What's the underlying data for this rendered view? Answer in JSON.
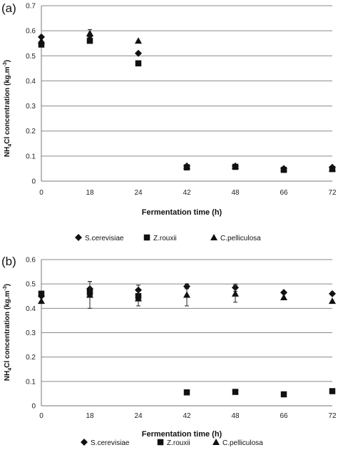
{
  "chart_data": [
    {
      "type": "scatter",
      "panel": "(a)",
      "title": "",
      "xlabel": "Fermentation time (h)",
      "ylabel_main": "NH",
      "ylabel_sub": "4",
      "ylabel_rest": "Cl concentration  (kg.m",
      "ylabel_sup": "-3",
      "ylabel_end": ")",
      "ylim": [
        0,
        0.7
      ],
      "yticks": [
        "0",
        "0.1",
        "0.2",
        "0.3",
        "0.4",
        "0.5",
        "0.6",
        "0.7"
      ],
      "categories": [
        "0",
        "18",
        "24",
        "42",
        "48",
        "66",
        "72"
      ],
      "grid": true,
      "legend": "bottom",
      "series": [
        {
          "name": "S.cerevisiae",
          "marker": "diamond",
          "values": [
            0.575,
            0.58,
            0.51,
            0.06,
            0.06,
            0.05,
            0.055
          ],
          "err": [
            0,
            0,
            0,
            0,
            0,
            0,
            0
          ]
        },
        {
          "name": "Z.rouxii",
          "marker": "square",
          "values": [
            0.545,
            0.56,
            0.47,
            0.055,
            0.057,
            0.045,
            0.048
          ],
          "err": [
            0,
            0,
            0,
            0,
            0,
            0,
            0
          ]
        },
        {
          "name": "C.pelliculosa",
          "marker": "triangle",
          "values": [
            0.56,
            0.59,
            0.56,
            0.06,
            0.06,
            0.05,
            0.05
          ],
          "err": [
            0,
            0.015,
            0,
            0,
            0,
            0,
            0
          ]
        }
      ]
    },
    {
      "type": "scatter",
      "panel": "(b)",
      "title": "",
      "xlabel": "Fermentation time (h)",
      "ylabel_main": "NH",
      "ylabel_sub": "4",
      "ylabel_rest": "Cl concentration  (kg.m",
      "ylabel_sup": "-3",
      "ylabel_end": ")",
      "ylim": [
        0,
        0.6
      ],
      "yticks": [
        "0",
        "0.1",
        "0.2",
        "0.3",
        "0.4",
        "0.5",
        "0.6"
      ],
      "categories": [
        "0",
        "18",
        "24",
        "42",
        "48",
        "66",
        "72"
      ],
      "grid": true,
      "legend": "bottom",
      "series": [
        {
          "name": "S.cerevisiae",
          "marker": "diamond",
          "values": [
            0.45,
            0.48,
            0.475,
            0.49,
            0.485,
            0.465,
            0.46
          ],
          "err": [
            0,
            0.03,
            0.02,
            0.01,
            0.015,
            0,
            0
          ]
        },
        {
          "name": "Z.rouxii",
          "marker": "square",
          "values": [
            0.46,
            0.465,
            0.45,
            0.055,
            0.057,
            0.047,
            0.06
          ],
          "err": [
            0,
            0,
            0,
            0,
            0,
            0,
            0
          ]
        },
        {
          "name": "C.pelliculosa",
          "marker": "triangle",
          "values": [
            0.43,
            0.455,
            0.44,
            0.455,
            0.46,
            0.445,
            0.43
          ],
          "err": [
            0,
            0.055,
            0.03,
            0.045,
            0.035,
            0,
            0
          ]
        }
      ]
    }
  ]
}
